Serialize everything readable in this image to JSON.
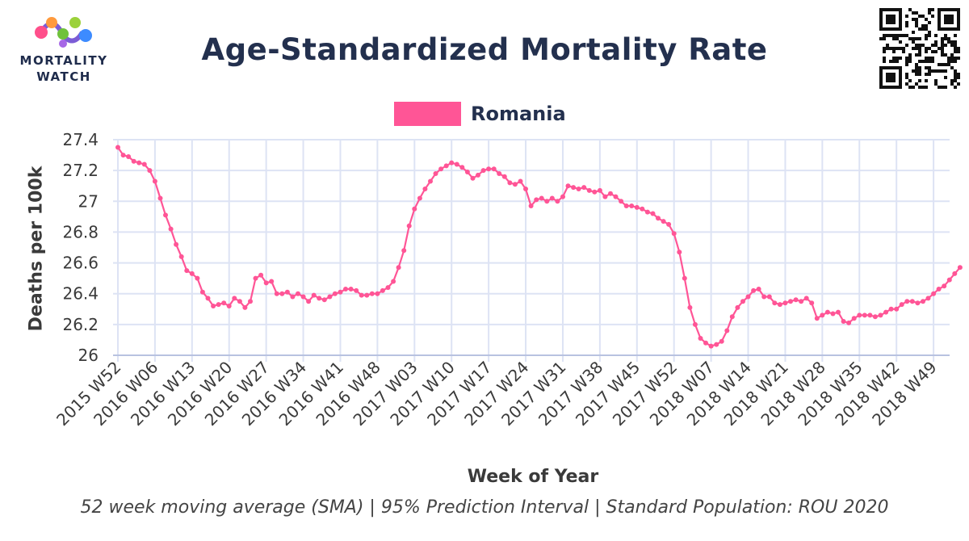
{
  "header": {
    "title": "Age-Standardized Mortality Rate",
    "logo_line1": "MORTALITY",
    "logo_line2": "WATCH",
    "caption": "52 week moving average (SMA) | 95% Prediction Interval | Standard Population: ROU 2020"
  },
  "colors": {
    "series": "#ff5596",
    "title": "#23304e",
    "grid": "#dde3f4"
  },
  "icons": {
    "logo": "mortality-watch-logo",
    "qr": "qr-code"
  },
  "chart_data": {
    "type": "line",
    "title": "Age-Standardized Mortality Rate",
    "xlabel": "Week of Year",
    "ylabel": "Deaths per 100k",
    "ylim": [
      26.0,
      27.4
    ],
    "yticks": [
      26,
      26.2,
      26.4,
      26.6,
      26.8,
      27,
      27.2,
      27.4
    ],
    "ytick_labels": [
      "26",
      "26.2",
      "26.4",
      "26.6",
      "26.8",
      "27",
      "27.2",
      "27.4"
    ],
    "grid": true,
    "legend_position": "top-center",
    "xtick_labels": [
      "2015 W52",
      "2016 W06",
      "2016 W13",
      "2016 W20",
      "2016 W27",
      "2016 W34",
      "2016 W41",
      "2016 W48",
      "2017 W03",
      "2017 W10",
      "2017 W17",
      "2017 W24",
      "2017 W31",
      "2017 W38",
      "2017 W45",
      "2017 W52",
      "2018 W07",
      "2018 W14",
      "2018 W21",
      "2018 W28",
      "2018 W35",
      "2018 W42",
      "2018 W49"
    ],
    "series": [
      {
        "name": "Romania",
        "color": "#ff5596",
        "start": "2015 W52",
        "values": [
          27.35,
          27.3,
          27.29,
          27.26,
          27.25,
          27.24,
          27.2,
          27.13,
          27.02,
          26.91,
          26.82,
          26.72,
          26.64,
          26.55,
          26.53,
          26.5,
          26.41,
          26.37,
          26.32,
          26.33,
          26.34,
          26.32,
          26.37,
          26.35,
          26.31,
          26.35,
          26.5,
          26.52,
          26.47,
          26.48,
          26.4,
          26.4,
          26.41,
          26.38,
          26.4,
          26.38,
          26.35,
          26.39,
          26.37,
          26.36,
          26.38,
          26.4,
          26.41,
          26.43,
          26.43,
          26.42,
          26.39,
          26.39,
          26.4,
          26.4,
          26.42,
          26.44,
          26.48,
          26.57,
          26.68,
          26.84,
          26.95,
          27.02,
          27.08,
          27.13,
          27.18,
          27.21,
          27.23,
          27.25,
          27.24,
          27.22,
          27.19,
          27.15,
          27.17,
          27.2,
          27.21,
          27.21,
          27.18,
          27.16,
          27.12,
          27.11,
          27.13,
          27.08,
          26.97,
          27.01,
          27.02,
          27.0,
          27.02,
          27.0,
          27.03,
          27.1,
          27.09,
          27.08,
          27.09,
          27.07,
          27.06,
          27.07,
          27.03,
          27.05,
          27.03,
          27.0,
          26.97,
          26.97,
          26.96,
          26.95,
          26.93,
          26.92,
          26.89,
          26.87,
          26.85,
          26.79,
          26.67,
          26.5,
          26.31,
          26.2,
          26.11,
          26.08,
          26.06,
          26.07,
          26.09,
          26.16,
          26.25,
          26.31,
          26.35,
          26.38,
          26.42,
          26.43,
          26.38,
          26.38,
          26.34,
          26.33,
          26.34,
          26.35,
          26.36,
          26.35,
          26.37,
          26.34,
          26.24,
          26.26,
          26.28,
          26.27,
          26.28,
          26.22,
          26.21,
          26.24,
          26.26,
          26.26,
          26.26,
          26.25,
          26.26,
          26.28,
          26.3,
          26.3,
          26.33,
          26.35,
          26.35,
          26.34,
          26.35,
          26.37,
          26.4,
          26.43,
          26.45,
          26.49,
          26.53,
          26.57
        ]
      }
    ]
  }
}
